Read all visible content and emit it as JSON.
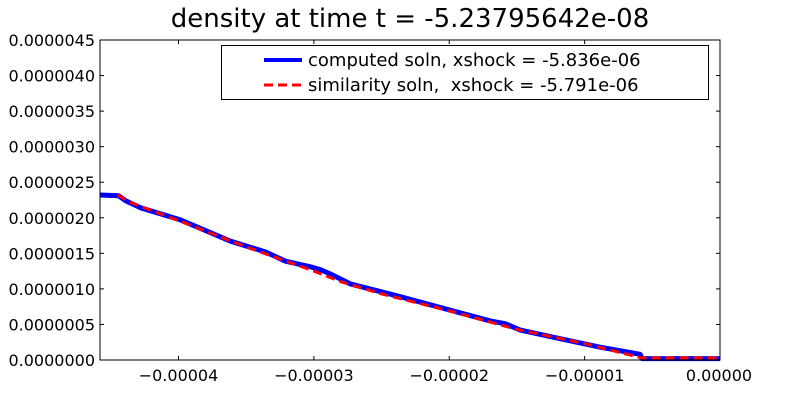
{
  "chart_data": {
    "type": "line",
    "title": "density at time t = -5.23795642e-08",
    "xlabel": "",
    "ylabel": "",
    "xlim": [
      -4.58e-05,
      0.0
    ],
    "ylim": [
      0.0,
      4.5e-06
    ],
    "xticks": [
      -4e-05,
      -3e-05,
      -2e-05,
      -1e-05,
      0.0
    ],
    "xtick_labels": [
      "−0.00004",
      "−0.00003",
      "−0.00002",
      "−0.00001",
      "0.00000"
    ],
    "yticks": [
      0,
      5e-07,
      1e-06,
      1.5e-06,
      2e-06,
      2.5e-06,
      3e-06,
      3.5e-06,
      4e-06,
      4.5e-06
    ],
    "ytick_labels": [
      "0.0000000",
      "0.0000005",
      "0.0000010",
      "0.0000015",
      "0.0000020",
      "0.0000025",
      "0.0000030",
      "0.0000035",
      "0.0000040",
      "0.0000045"
    ],
    "grid": false,
    "legend_position": "top-right",
    "series": [
      {
        "name": "computed soln, xshock = -5.836e-06",
        "color": "#0000ff",
        "style": "solid",
        "x": [
          -4.576e-05,
          -4.443e-05,
          -4.391e-05,
          -4.28e-05,
          -3.985e-05,
          -3.616e-05,
          -3.358e-05,
          -3.21e-05,
          -3.026e-05,
          -2.952e-05,
          -2.878e-05,
          -2.731e-05,
          -2.362e-05,
          -1.993e-05,
          -1.697e-05,
          -1.587e-05,
          -1.476e-05,
          -1.181e-05,
          -8.86e-06,
          -5.9e-06,
          -5.76e-06,
          0.0
        ],
        "y": [
          2.32e-06,
          2.31e-06,
          2.24e-06,
          2.14e-06,
          1.97e-06,
          1.67e-06,
          1.52e-06,
          1.39e-06,
          1.31e-06,
          1.27e-06,
          1.21e-06,
          1.07e-06,
          8.9e-07,
          7e-07,
          5.5e-07,
          5.1e-07,
          4.2e-07,
          3e-07,
          1.8e-07,
          8e-08,
          2e-08,
          2e-08
        ]
      },
      {
        "name": "similarity soln,  xshock = -5.791e-06",
        "color": "#ff0000",
        "style": "dashed",
        "x": [
          -4.45e-05,
          -4.35e-05,
          -4e-05,
          -3.5e-05,
          -3e-05,
          -2.8e-05,
          -2.5e-05,
          -2e-05,
          -1.5e-05,
          -1e-05,
          -5.79e-06,
          0.0
        ],
        "y": [
          2.32e-06,
          2.21e-06,
          1.96e-06,
          1.59e-06,
          1.25e-06,
          1.1e-06,
          9.3e-07,
          6.9e-07,
          4.3e-07,
          2.3e-07,
          3e-08,
          3e-08
        ]
      }
    ]
  }
}
